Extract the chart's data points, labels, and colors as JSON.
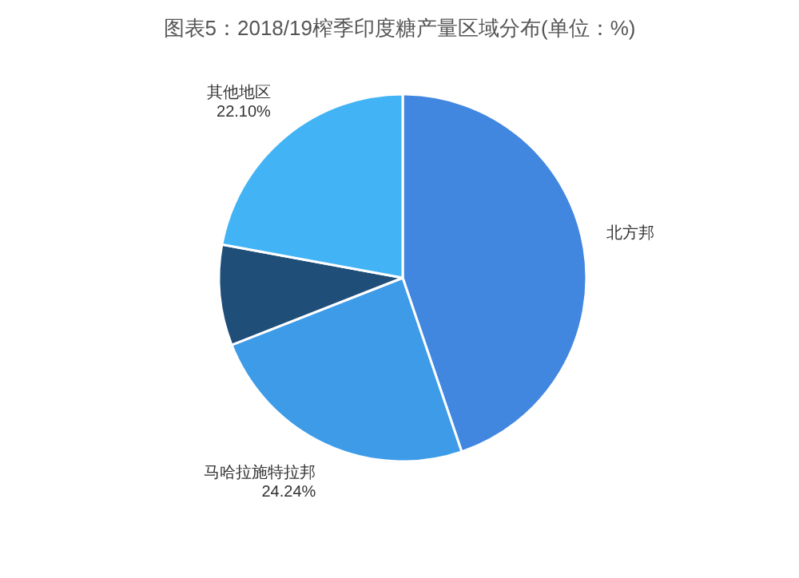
{
  "chart_data": {
    "type": "pie",
    "title": "图表5：2018/19榨季印度糖产量区域分布(单位：%)",
    "categories": [
      "北方邦",
      "马哈拉施特拉邦",
      null,
      "其他地区"
    ],
    "values": [
      44.8,
      24.24,
      8.86,
      22.1
    ],
    "value_labels": [
      null,
      "24.24%",
      null,
      "22.10%"
    ],
    "colors": [
      "#4187e0",
      "#3d9be8",
      "#1f4e79",
      "#42b4f5"
    ]
  }
}
